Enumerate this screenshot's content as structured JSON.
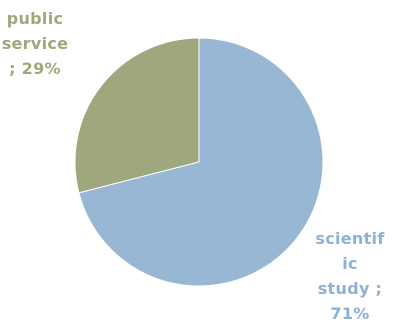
{
  "chart_data": {
    "type": "pie",
    "slices": [
      {
        "label": "public\nservice\n; 29%",
        "value": 29,
        "color": "#9fa77d",
        "label_color": "#9fa77d"
      },
      {
        "label": "scientif\nic\nstudy ;\n71%",
        "value": 71,
        "color": "#98b7d5",
        "label_color": "#8fb0d4"
      }
    ]
  }
}
